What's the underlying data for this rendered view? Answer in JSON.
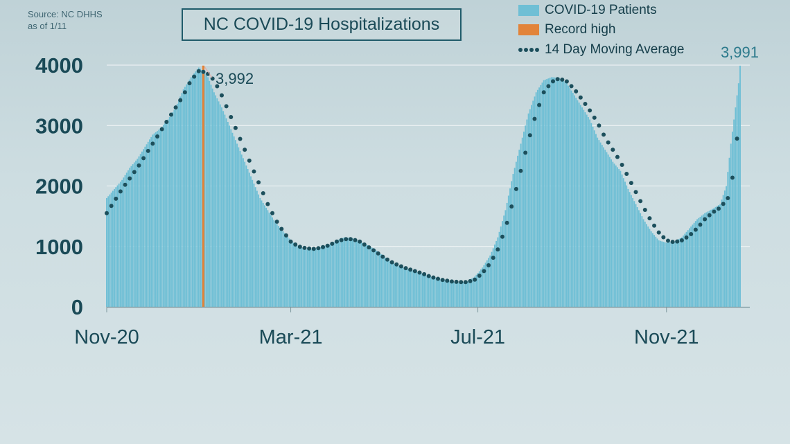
{
  "source": {
    "line1": "Source: NC DHHS",
    "line2": "as of 1/11"
  },
  "title": "NC COVID-19 Hospitalizations",
  "legend": {
    "patients": "COVID-19 Patients",
    "record": "Record high",
    "average": "14 Day Moving Average"
  },
  "annotations": {
    "record_value": "3,992",
    "latest_value": "3,991"
  },
  "colors": {
    "bars": "#6fbfd5",
    "record": "#e2843a",
    "average": "#1c4f5c",
    "axis_text": "#1a4a57",
    "grid": "#ffffff"
  },
  "chart_data": {
    "type": "bar",
    "title": "NC COVID-19 Hospitalizations",
    "xlabel": "",
    "ylabel": "",
    "ylim": [
      0,
      4000
    ],
    "yticks": [
      0,
      1000,
      2000,
      3000,
      4000
    ],
    "ytick_labels": [
      "0",
      "1000",
      "2000",
      "3000",
      "4000"
    ],
    "x_tick_labels": [
      "Nov-20",
      "Mar-21",
      "Jul-21",
      "Nov-21"
    ],
    "x_tick_day_index": [
      0,
      120,
      242,
      365
    ],
    "day_count": 414,
    "patients_series_keyframes": [
      [
        0,
        1800
      ],
      [
        5,
        1950
      ],
      [
        10,
        2100
      ],
      [
        15,
        2300
      ],
      [
        20,
        2450
      ],
      [
        25,
        2650
      ],
      [
        30,
        2850
      ],
      [
        35,
        2950
      ],
      [
        40,
        3100
      ],
      [
        45,
        3300
      ],
      [
        50,
        3600
      ],
      [
        55,
        3800
      ],
      [
        60,
        3960
      ],
      [
        63,
        3900
      ],
      [
        66,
        3800
      ],
      [
        70,
        3550
      ],
      [
        75,
        3300
      ],
      [
        80,
        3000
      ],
      [
        85,
        2700
      ],
      [
        90,
        2400
      ],
      [
        95,
        2100
      ],
      [
        100,
        1800
      ],
      [
        105,
        1600
      ],
      [
        110,
        1400
      ],
      [
        115,
        1250
      ],
      [
        120,
        1100
      ],
      [
        125,
        1000
      ],
      [
        130,
        950
      ],
      [
        135,
        960
      ],
      [
        140,
        1000
      ],
      [
        145,
        1030
      ],
      [
        150,
        1100
      ],
      [
        155,
        1150
      ],
      [
        160,
        1140
      ],
      [
        165,
        1080
      ],
      [
        170,
        1020
      ],
      [
        175,
        950
      ],
      [
        180,
        850
      ],
      [
        185,
        750
      ],
      [
        190,
        680
      ],
      [
        195,
        640
      ],
      [
        200,
        600
      ],
      [
        205,
        560
      ],
      [
        210,
        510
      ],
      [
        215,
        480
      ],
      [
        220,
        450
      ],
      [
        225,
        420
      ],
      [
        230,
        400
      ],
      [
        235,
        420
      ],
      [
        240,
        500
      ],
      [
        245,
        650
      ],
      [
        250,
        850
      ],
      [
        255,
        1150
      ],
      [
        260,
        1600
      ],
      [
        265,
        2200
      ],
      [
        270,
        2700
      ],
      [
        275,
        3200
      ],
      [
        280,
        3550
      ],
      [
        285,
        3750
      ],
      [
        290,
        3800
      ],
      [
        295,
        3790
      ],
      [
        300,
        3700
      ],
      [
        305,
        3500
      ],
      [
        310,
        3300
      ],
      [
        315,
        3100
      ],
      [
        320,
        2800
      ],
      [
        325,
        2600
      ],
      [
        330,
        2400
      ],
      [
        335,
        2250
      ],
      [
        340,
        1950
      ],
      [
        345,
        1700
      ],
      [
        350,
        1450
      ],
      [
        355,
        1250
      ],
      [
        360,
        1100
      ],
      [
        365,
        1060
      ],
      [
        370,
        1080
      ],
      [
        375,
        1150
      ],
      [
        380,
        1300
      ],
      [
        385,
        1450
      ],
      [
        390,
        1550
      ],
      [
        395,
        1620
      ],
      [
        400,
        1700
      ],
      [
        404,
        2000
      ],
      [
        407,
        2700
      ],
      [
        410,
        3300
      ],
      [
        412,
        3700
      ],
      [
        413,
        3991
      ]
    ],
    "average_series_keyframes": [
      [
        0,
        1550
      ],
      [
        10,
        1950
      ],
      [
        20,
        2300
      ],
      [
        30,
        2700
      ],
      [
        40,
        3100
      ],
      [
        50,
        3500
      ],
      [
        55,
        3750
      ],
      [
        60,
        3900
      ],
      [
        65,
        3880
      ],
      [
        70,
        3750
      ],
      [
        75,
        3500
      ],
      [
        80,
        3200
      ],
      [
        85,
        2900
      ],
      [
        90,
        2600
      ],
      [
        95,
        2300
      ],
      [
        100,
        2000
      ],
      [
        105,
        1700
      ],
      [
        110,
        1450
      ],
      [
        115,
        1250
      ],
      [
        120,
        1080
      ],
      [
        125,
        1000
      ],
      [
        130,
        970
      ],
      [
        135,
        960
      ],
      [
        140,
        980
      ],
      [
        145,
        1020
      ],
      [
        150,
        1080
      ],
      [
        155,
        1120
      ],
      [
        160,
        1120
      ],
      [
        165,
        1080
      ],
      [
        170,
        1000
      ],
      [
        175,
        920
      ],
      [
        180,
        830
      ],
      [
        185,
        750
      ],
      [
        190,
        690
      ],
      [
        195,
        640
      ],
      [
        200,
        600
      ],
      [
        205,
        560
      ],
      [
        210,
        510
      ],
      [
        215,
        470
      ],
      [
        220,
        440
      ],
      [
        225,
        420
      ],
      [
        230,
        410
      ],
      [
        235,
        410
      ],
      [
        240,
        450
      ],
      [
        245,
        560
      ],
      [
        250,
        720
      ],
      [
        255,
        950
      ],
      [
        260,
        1300
      ],
      [
        265,
        1750
      ],
      [
        270,
        2250
      ],
      [
        275,
        2750
      ],
      [
        280,
        3200
      ],
      [
        285,
        3550
      ],
      [
        290,
        3720
      ],
      [
        295,
        3780
      ],
      [
        300,
        3730
      ],
      [
        305,
        3600
      ],
      [
        310,
        3430
      ],
      [
        315,
        3250
      ],
      [
        320,
        3050
      ],
      [
        325,
        2800
      ],
      [
        330,
        2600
      ],
      [
        335,
        2400
      ],
      [
        340,
        2150
      ],
      [
        345,
        1900
      ],
      [
        350,
        1650
      ],
      [
        355,
        1420
      ],
      [
        360,
        1230
      ],
      [
        365,
        1100
      ],
      [
        370,
        1070
      ],
      [
        375,
        1100
      ],
      [
        380,
        1180
      ],
      [
        385,
        1300
      ],
      [
        390,
        1450
      ],
      [
        395,
        1560
      ],
      [
        400,
        1640
      ],
      [
        405,
        1800
      ],
      [
        409,
        2250
      ],
      [
        412,
        3050
      ]
    ],
    "record_high": {
      "day_index": 63,
      "value": 3992
    },
    "latest": {
      "day_index": 413,
      "value": 3991
    }
  }
}
